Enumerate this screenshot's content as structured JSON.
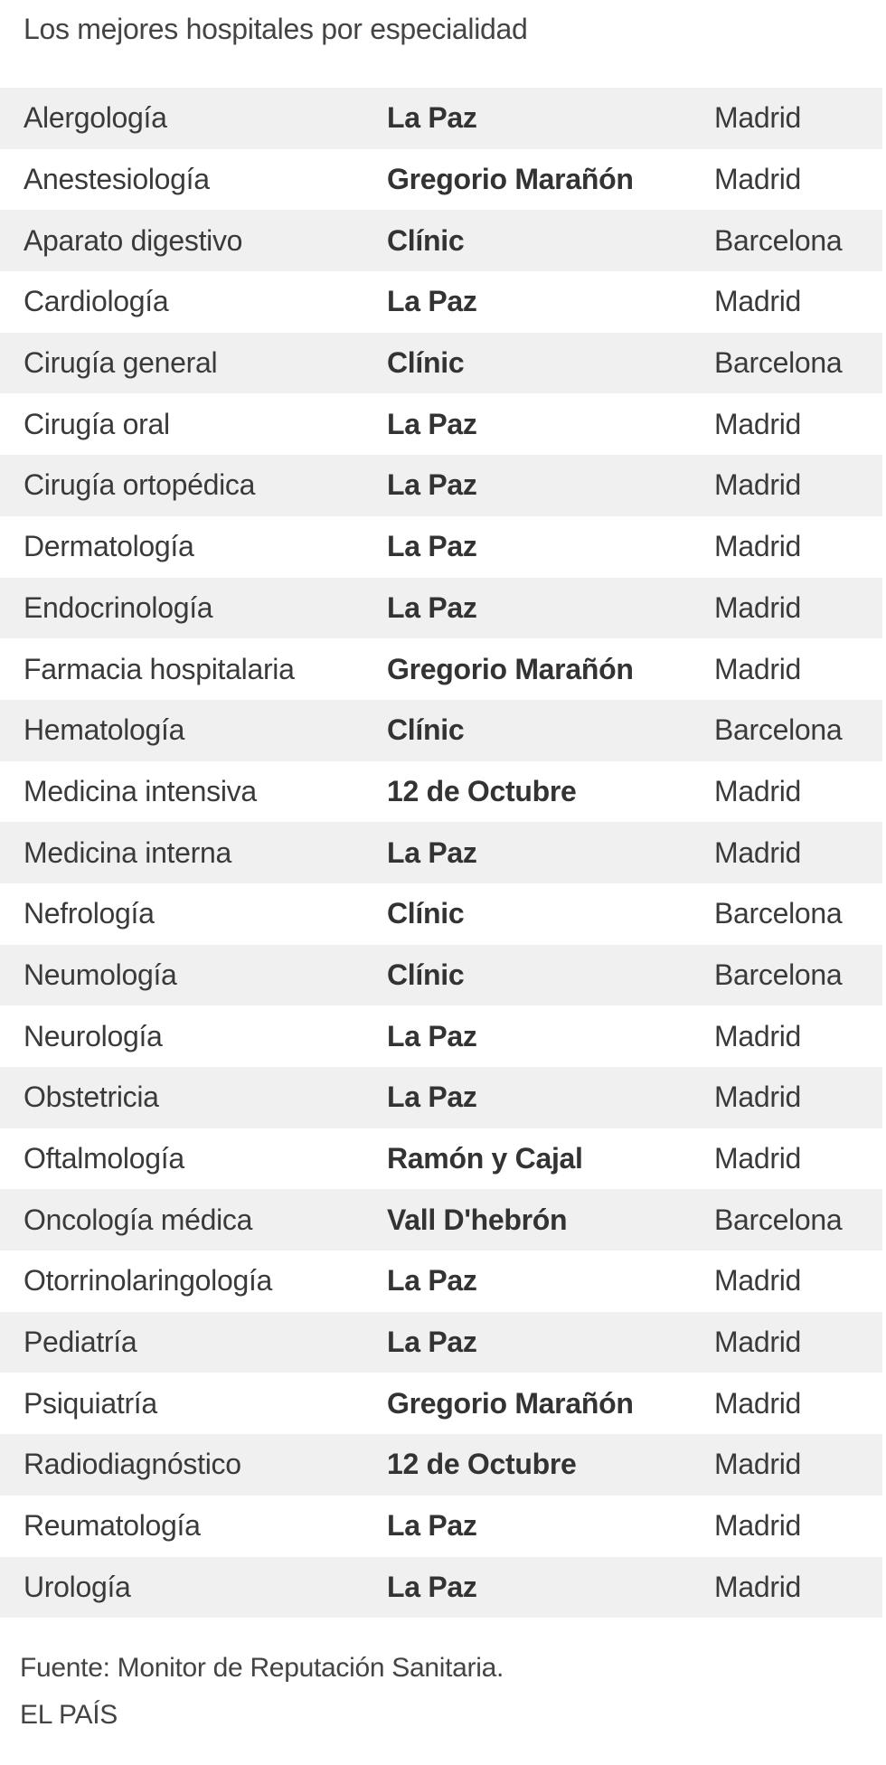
{
  "title": "Los mejores hospitales por especialidad",
  "rows": [
    {
      "specialty": "Alergología",
      "hospital": "La Paz",
      "city": "Madrid"
    },
    {
      "specialty": "Anestesiología",
      "hospital": "Gregorio Marañón",
      "city": "Madrid"
    },
    {
      "specialty": "Aparato digestivo",
      "hospital": "Clínic",
      "city": "Barcelona"
    },
    {
      "specialty": "Cardiología",
      "hospital": "La Paz",
      "city": "Madrid"
    },
    {
      "specialty": "Cirugía general",
      "hospital": "Clínic",
      "city": "Barcelona"
    },
    {
      "specialty": "Cirugía oral",
      "hospital": "La Paz",
      "city": "Madrid"
    },
    {
      "specialty": "Cirugía ortopédica",
      "hospital": "La Paz",
      "city": "Madrid"
    },
    {
      "specialty": "Dermatología",
      "hospital": "La Paz",
      "city": "Madrid"
    },
    {
      "specialty": "Endocrinología",
      "hospital": "La Paz",
      "city": "Madrid"
    },
    {
      "specialty": "Farmacia hospitalaria",
      "hospital": "Gregorio Marañón",
      "city": "Madrid"
    },
    {
      "specialty": "Hematología",
      "hospital": "Clínic",
      "city": "Barcelona"
    },
    {
      "specialty": "Medicina intensiva",
      "hospital": "12 de Octubre",
      "city": "Madrid"
    },
    {
      "specialty": "Medicina interna",
      "hospital": "La Paz",
      "city": "Madrid"
    },
    {
      "specialty": "Nefrología",
      "hospital": "Clínic",
      "city": "Barcelona"
    },
    {
      "specialty": "Neumología",
      "hospital": "Clínic",
      "city": "Barcelona"
    },
    {
      "specialty": "Neurología",
      "hospital": "La Paz",
      "city": "Madrid"
    },
    {
      "specialty": "Obstetricia",
      "hospital": "La Paz",
      "city": "Madrid"
    },
    {
      "specialty": "Oftalmología",
      "hospital": "Ramón y Cajal",
      "city": "Madrid"
    },
    {
      "specialty": "Oncología médica",
      "hospital": "Vall D'hebrón",
      "city": "Barcelona"
    },
    {
      "specialty": "Otorrinolaringología",
      "hospital": "La Paz",
      "city": "Madrid"
    },
    {
      "specialty": "Pediatría",
      "hospital": "La Paz",
      "city": "Madrid"
    },
    {
      "specialty": "Psiquiatría",
      "hospital": "Gregorio Marañón",
      "city": "Madrid"
    },
    {
      "specialty": "Radiodiagnóstico",
      "hospital": "12 de Octubre",
      "city": "Madrid"
    },
    {
      "specialty": "Reumatología",
      "hospital": "La Paz",
      "city": "Madrid"
    },
    {
      "specialty": "Urología",
      "hospital": "La Paz",
      "city": "Madrid"
    }
  ],
  "footer": {
    "source": "Fuente: Monitor de Reputación Sanitaria.",
    "credit": "EL PAÍS"
  }
}
